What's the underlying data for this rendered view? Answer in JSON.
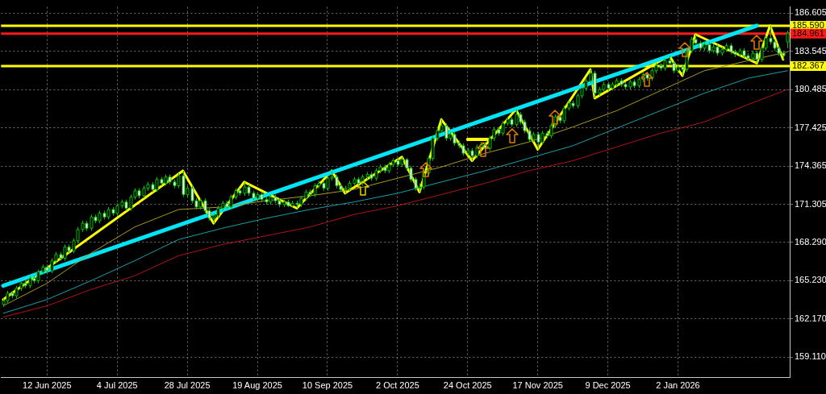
{
  "chart_data": {
    "type": "candlestick",
    "grid": true,
    "colors": [
      "#000000",
      "#000000",
      "#ffffff",
      "#000000",
      "#000000",
      "#ffffff",
      "#000000",
      "#ffffff",
      "#000000",
      "#000000",
      "#ffffff",
      "#000000",
      "#000000",
      "#ffffff",
      "#000000",
      "#ffffff",
      "#000000",
      "#000000",
      "#000000",
      "#ffffff",
      "#000000",
      "#ffffff",
      "#000000",
      "#ffffff",
      "#000000",
      "#ffffff",
      "#000000",
      "#000000",
      "#ffffff",
      "#000000",
      "#000000",
      "#ffffff",
      "#000000",
      "#000000",
      "#ffffff",
      "#000000",
      "#ffffff",
      "#000000",
      "#ffffff",
      "#ffffff",
      "#000000",
      "#ffffff",
      "#000000",
      "#ffffff",
      "#ffffff",
      "#000000",
      "#ffffff",
      "#ffffff",
      "#000000",
      "#000000",
      "#000000",
      "#ffffff",
      "#000000",
      "#000000",
      "#ffffff",
      "#000000",
      "#ffffff",
      "#ffffff",
      "#000000",
      "#ffffff",
      "#ffffff",
      "#000000",
      "#ffffff",
      "#ffffff",
      "#000000",
      "#ffffff",
      "#000000",
      "#ffffff",
      "#000000",
      "#000000",
      "#ffffff",
      "#000000",
      "#000000",
      "#ffffff",
      "#000000",
      "#000000",
      "#ffffff",
      "#ffffff",
      "#000000",
      "#000000",
      "#000000",
      "#ffffff",
      "#000000",
      "#000000",
      "#ffffff",
      "#000000",
      "#000000",
      "#ffffff",
      "#000000",
      "#000000",
      "#ffffff",
      "#000000",
      "#ffffff",
      "#ffffff",
      "#ffffff",
      "#000000",
      "#000000",
      "#000000",
      "#000000",
      "#000000",
      "#000000",
      "#ffffff",
      "#000000",
      "#ffffff",
      "#ffffff",
      "#ffffff",
      "#000000",
      "#ffffff",
      "#000000",
      "#000000",
      "#ffffff",
      "#000000",
      "#000000",
      "#ffffff",
      "#000000",
      "#000000",
      "#ffffff",
      "#000000",
      "#ffffff",
      "#ffffff",
      "#ffffff",
      "#000000",
      "#ffffff",
      "#000000",
      "#ffffff",
      "#000000",
      "#000000",
      "#ffffff",
      "#000000",
      "#000000",
      "#ffffff",
      "#000000",
      "#000000",
      "#000000",
      "#000000",
      "#ffffff",
      "#000000",
      "#000000",
      "#ffffff",
      "#000000",
      "#000000",
      "#ffffff",
      "#ffffff",
      "#000000",
      "#ffffff",
      "#000000",
      "#000000",
      "#ffffff",
      "#000000",
      "#000000",
      "#ffffff",
      "#000000",
      "#ffffff",
      "#ffffff",
      "#000000",
      "#ffffff",
      "#000000",
      "#000000",
      "#ffffff",
      "#ffffff",
      "#000000",
      "#ffffff",
      "#000000",
      "#ffffff",
      "#000000",
      "#000000",
      "#ffffff",
      "#ffffff",
      "#000000",
      "#ffffff",
      "#ffffff",
      "#000000",
      "#ffffff",
      "#000000",
      "#000000",
      "#ffffff",
      "#ffffff",
      "#ffffff",
      "#ffffff",
      "#000000"
    ],
    "categories": [
      null,
      null,
      null,
      null,
      null,
      null,
      null,
      null,
      null,
      null,
      "12 Jun 2025",
      null,
      null,
      null,
      null,
      null,
      null,
      null,
      null,
      null,
      null,
      null,
      null,
      null,
      null,
      null,
      "4 Jul 2025",
      null,
      null,
      null,
      null,
      null,
      null,
      null,
      null,
      null,
      null,
      null,
      null,
      null,
      null,
      null,
      "28 Jul 2025",
      null,
      null,
      null,
      null,
      null,
      null,
      null,
      null,
      null,
      null,
      null,
      null,
      null,
      null,
      null,
      "19 Aug 2025",
      null,
      null,
      null,
      null,
      null,
      null,
      null,
      null,
      null,
      null,
      null,
      null,
      null,
      null,
      null,
      "10 Sep 2025",
      null,
      null,
      null,
      null,
      null,
      null,
      null,
      null,
      null,
      null,
      null,
      null,
      null,
      null,
      null,
      "2 Oct 2025",
      null,
      null,
      null,
      null,
      null,
      null,
      null,
      null,
      null,
      null,
      null,
      null,
      null,
      null,
      null,
      "24 Oct 2025",
      null,
      null,
      null,
      null,
      null,
      null,
      null,
      null,
      null,
      null,
      null,
      null,
      null,
      null,
      null,
      "17 Nov 2025",
      null,
      null,
      null,
      null,
      null,
      null,
      null,
      null,
      null,
      null,
      null,
      null,
      null,
      null,
      null,
      "9 Dec 2025",
      null,
      null,
      null,
      null,
      null,
      null,
      null,
      null,
      null,
      null,
      null,
      null,
      null,
      null,
      null,
      "2 Jan 2026",
      null,
      null,
      null,
      null,
      null,
      null,
      null,
      null,
      null,
      null,
      null,
      null,
      null,
      null,
      null,
      null,
      null,
      null,
      null,
      null,
      null,
      null,
      null,
      null,
      null
    ],
    "ohlc": [
      [
        163.3,
        163.8,
        163.1,
        163.6
      ],
      [
        163.6,
        164.4,
        163.4,
        164.2
      ],
      [
        164.2,
        164.4,
        163.8,
        164.0
      ],
      [
        164.0,
        164.8,
        163.8,
        164.6
      ],
      [
        164.6,
        165.2,
        164.4,
        165.0
      ],
      [
        165.0,
        165.2,
        164.6,
        164.8
      ],
      [
        164.8,
        165.6,
        164.6,
        165.4
      ],
      [
        165.4,
        165.6,
        165.0,
        165.2
      ],
      [
        165.2,
        166.1,
        165.0,
        165.9
      ],
      [
        165.9,
        166.5,
        165.7,
        166.3
      ],
      [
        166.3,
        166.5,
        165.8,
        166.0
      ],
      [
        166.0,
        167.0,
        165.8,
        166.8
      ],
      [
        166.8,
        167.5,
        166.6,
        167.3
      ],
      [
        167.3,
        167.5,
        166.8,
        167.0
      ],
      [
        167.0,
        168.1,
        166.8,
        167.9
      ],
      [
        167.9,
        168.1,
        167.4,
        167.6
      ],
      [
        167.6,
        168.6,
        167.4,
        168.4
      ],
      [
        168.4,
        169.5,
        168.2,
        169.3
      ],
      [
        169.3,
        170.0,
        169.1,
        169.8
      ],
      [
        169.8,
        170.0,
        169.2,
        169.4
      ],
      [
        169.4,
        170.5,
        169.2,
        170.3
      ],
      [
        170.3,
        170.5,
        169.8,
        170.0
      ],
      [
        170.0,
        170.8,
        169.8,
        170.6
      ],
      [
        170.6,
        170.8,
        170.1,
        170.3
      ],
      [
        170.3,
        171.1,
        170.1,
        170.9
      ],
      [
        170.9,
        171.1,
        170.4,
        170.6
      ],
      [
        170.6,
        171.4,
        170.4,
        171.2
      ],
      [
        171.2,
        171.7,
        171.0,
        171.5
      ],
      [
        171.5,
        171.7,
        170.8,
        171.0
      ],
      [
        171.0,
        172.1,
        170.8,
        171.9
      ],
      [
        171.9,
        172.6,
        171.7,
        172.4
      ],
      [
        172.4,
        172.6,
        171.8,
        172.0
      ],
      [
        172.0,
        172.8,
        171.8,
        172.6
      ],
      [
        172.6,
        173.1,
        172.4,
        172.9
      ],
      [
        172.9,
        173.1,
        172.3,
        172.5
      ],
      [
        172.5,
        173.5,
        172.3,
        173.3
      ],
      [
        173.3,
        173.5,
        172.8,
        173.0
      ],
      [
        173.0,
        173.7,
        172.8,
        173.5
      ],
      [
        173.5,
        173.7,
        172.9,
        173.1
      ],
      [
        173.1,
        173.3,
        172.6,
        172.8
      ],
      [
        172.8,
        173.8,
        172.6,
        173.6
      ],
      [
        173.6,
        174.0,
        171.9,
        172.1
      ],
      [
        172.1,
        172.8,
        171.9,
        172.6
      ],
      [
        172.6,
        172.8,
        171.4,
        171.6
      ],
      [
        171.6,
        171.8,
        170.9,
        171.1
      ],
      [
        171.1,
        171.8,
        170.9,
        171.6
      ],
      [
        171.6,
        171.8,
        170.6,
        170.8
      ],
      [
        170.8,
        171.0,
        170.0,
        170.2
      ],
      [
        170.2,
        170.6,
        169.8,
        170.4
      ],
      [
        170.4,
        171.2,
        170.2,
        171.0
      ],
      [
        171.0,
        171.6,
        170.8,
        171.4
      ],
      [
        171.4,
        171.6,
        170.9,
        171.1
      ],
      [
        171.1,
        172.1,
        170.9,
        171.9
      ],
      [
        171.9,
        172.6,
        171.7,
        172.4
      ],
      [
        172.4,
        172.6,
        172.0,
        172.2
      ],
      [
        172.2,
        173.1,
        172.0,
        172.7
      ],
      [
        172.7,
        172.9,
        172.0,
        172.2
      ],
      [
        172.2,
        172.4,
        171.6,
        171.8
      ],
      [
        171.8,
        172.3,
        171.6,
        172.1
      ],
      [
        172.1,
        172.3,
        171.5,
        171.7
      ],
      [
        171.7,
        171.9,
        171.3,
        171.5
      ],
      [
        171.5,
        172.1,
        171.3,
        171.9
      ],
      [
        171.9,
        172.1,
        171.4,
        171.6
      ],
      [
        171.6,
        171.8,
        171.1,
        171.3
      ],
      [
        171.3,
        171.7,
        171.1,
        171.5
      ],
      [
        171.5,
        171.7,
        171.1,
        171.2
      ],
      [
        171.2,
        171.6,
        171.1,
        171.4
      ],
      [
        171.4,
        171.6,
        171.0,
        171.3
      ],
      [
        171.3,
        172.0,
        171.1,
        171.8
      ],
      [
        171.8,
        172.5,
        171.6,
        172.3
      ],
      [
        172.3,
        172.5,
        171.9,
        172.1
      ],
      [
        172.1,
        173.0,
        171.9,
        172.8
      ],
      [
        172.8,
        173.2,
        172.6,
        173.0
      ],
      [
        173.0,
        173.2,
        172.4,
        172.6
      ],
      [
        172.6,
        173.6,
        172.4,
        173.4
      ],
      [
        173.4,
        174.0,
        173.2,
        173.5
      ],
      [
        173.5,
        173.7,
        172.6,
        172.8
      ],
      [
        172.8,
        173.0,
        172.3,
        172.5
      ],
      [
        172.5,
        172.8,
        172.2,
        172.6
      ],
      [
        172.6,
        173.2,
        172.4,
        173.0
      ],
      [
        173.0,
        173.5,
        172.8,
        173.3
      ],
      [
        173.3,
        173.5,
        172.8,
        173.0
      ],
      [
        173.0,
        173.7,
        172.8,
        173.5
      ],
      [
        173.5,
        173.9,
        173.3,
        173.7
      ],
      [
        173.7,
        173.9,
        173.2,
        173.4
      ],
      [
        173.4,
        174.2,
        173.2,
        174.0
      ],
      [
        174.0,
        174.5,
        173.8,
        174.3
      ],
      [
        174.3,
        174.5,
        173.8,
        174.0
      ],
      [
        174.0,
        174.7,
        173.8,
        174.5
      ],
      [
        174.5,
        175.0,
        174.3,
        174.8
      ],
      [
        174.8,
        175.0,
        174.3,
        174.5
      ],
      [
        174.5,
        175.1,
        174.3,
        174.9
      ],
      [
        174.9,
        175.0,
        174.0,
        174.2
      ],
      [
        174.2,
        174.4,
        173.1,
        173.3
      ],
      [
        173.3,
        173.5,
        172.4,
        172.6
      ],
      [
        172.6,
        173.0,
        172.3,
        172.7
      ],
      [
        172.7,
        174.0,
        172.5,
        173.8
      ],
      [
        173.8,
        175.2,
        173.6,
        175.0
      ],
      [
        175.0,
        176.8,
        174.8,
        176.6
      ],
      [
        176.6,
        177.5,
        176.4,
        177.2
      ],
      [
        177.2,
        178.1,
        177.0,
        177.6
      ],
      [
        177.6,
        177.8,
        176.4,
        176.6
      ],
      [
        176.6,
        177.1,
        176.4,
        176.9
      ],
      [
        176.9,
        177.1,
        176.0,
        176.2
      ],
      [
        176.2,
        176.4,
        175.8,
        176.0
      ],
      [
        176.0,
        176.2,
        175.2,
        175.4
      ],
      [
        175.4,
        175.8,
        175.2,
        175.6
      ],
      [
        175.6,
        175.8,
        174.8,
        175.2
      ],
      [
        175.2,
        176.1,
        175.0,
        175.9
      ],
      [
        175.9,
        176.3,
        175.7,
        176.1
      ],
      [
        176.1,
        176.3,
        175.6,
        175.8
      ],
      [
        175.8,
        176.8,
        175.6,
        176.6
      ],
      [
        176.6,
        177.5,
        176.4,
        177.3
      ],
      [
        177.3,
        177.5,
        176.8,
        177.0
      ],
      [
        177.0,
        178.0,
        176.8,
        177.8
      ],
      [
        177.8,
        178.3,
        177.6,
        178.1
      ],
      [
        178.1,
        178.3,
        177.5,
        177.7
      ],
      [
        177.7,
        178.9,
        177.5,
        178.5
      ],
      [
        178.5,
        178.7,
        177.7,
        177.9
      ],
      [
        177.9,
        178.1,
        177.0,
        177.2
      ],
      [
        177.2,
        177.4,
        176.3,
        176.5
      ],
      [
        176.5,
        177.1,
        176.3,
        176.9
      ],
      [
        176.9,
        177.1,
        175.7,
        176.3
      ],
      [
        176.3,
        177.2,
        176.1,
        177.0
      ],
      [
        177.0,
        177.2,
        176.6,
        176.8
      ],
      [
        176.8,
        177.8,
        176.6,
        177.6
      ],
      [
        177.6,
        178.5,
        177.4,
        178.3
      ],
      [
        178.3,
        178.5,
        177.8,
        178.0
      ],
      [
        178.0,
        179.2,
        177.8,
        179.0
      ],
      [
        179.0,
        179.6,
        178.8,
        179.4
      ],
      [
        179.4,
        179.6,
        179.0,
        179.2
      ],
      [
        179.2,
        180.2,
        179.0,
        180.0
      ],
      [
        180.0,
        180.8,
        179.8,
        180.6
      ],
      [
        180.6,
        181.4,
        180.4,
        181.2
      ],
      [
        181.2,
        182.1,
        181.0,
        181.8
      ],
      [
        181.8,
        182.0,
        179.8,
        180.2
      ],
      [
        180.2,
        180.7,
        180.0,
        180.5
      ],
      [
        180.5,
        181.1,
        180.3,
        180.9
      ],
      [
        180.9,
        181.1,
        180.4,
        180.6
      ],
      [
        180.6,
        181.1,
        180.4,
        180.9
      ],
      [
        180.9,
        181.4,
        180.7,
        181.2
      ],
      [
        181.2,
        181.4,
        180.7,
        180.9
      ],
      [
        180.9,
        181.1,
        180.5,
        180.7
      ],
      [
        180.7,
        181.3,
        180.5,
        181.1
      ],
      [
        181.1,
        181.3,
        180.6,
        180.8
      ],
      [
        180.8,
        181.5,
        180.6,
        181.3
      ],
      [
        181.3,
        181.9,
        181.1,
        181.7
      ],
      [
        181.7,
        181.9,
        181.2,
        181.4
      ],
      [
        181.4,
        182.2,
        181.2,
        182.0
      ],
      [
        182.0,
        182.6,
        181.8,
        182.4
      ],
      [
        182.4,
        182.6,
        182.0,
        182.2
      ],
      [
        182.2,
        183.0,
        182.0,
        182.8
      ],
      [
        182.8,
        183.2,
        182.4,
        182.6
      ],
      [
        182.6,
        182.8,
        181.8,
        182.0
      ],
      [
        182.0,
        182.5,
        181.8,
        182.3
      ],
      [
        182.3,
        182.5,
        181.6,
        182.1
      ],
      [
        182.1,
        183.8,
        181.9,
        183.6
      ],
      [
        183.6,
        184.7,
        183.4,
        184.5
      ],
      [
        184.5,
        184.9,
        184.0,
        184.2
      ],
      [
        184.2,
        184.4,
        183.6,
        183.8
      ],
      [
        183.8,
        184.3,
        183.6,
        184.1
      ],
      [
        184.1,
        184.3,
        183.4,
        183.6
      ],
      [
        183.6,
        184.1,
        183.4,
        183.9
      ],
      [
        183.9,
        184.1,
        183.2,
        183.4
      ],
      [
        183.4,
        183.9,
        183.2,
        183.7
      ],
      [
        183.7,
        184.2,
        183.5,
        184.0
      ],
      [
        184.0,
        184.2,
        183.3,
        183.5
      ],
      [
        183.5,
        183.7,
        183.1,
        183.3
      ],
      [
        183.3,
        183.8,
        183.1,
        183.6
      ],
      [
        183.6,
        183.8,
        183.0,
        183.2
      ],
      [
        183.2,
        183.4,
        182.8,
        183.0
      ],
      [
        183.0,
        183.6,
        182.8,
        183.4
      ],
      [
        183.4,
        183.6,
        182.6,
        182.9
      ],
      [
        182.9,
        184.0,
        182.7,
        183.8
      ],
      [
        183.8,
        184.8,
        183.6,
        184.6
      ],
      [
        184.6,
        185.6,
        184.1,
        184.3
      ],
      [
        184.3,
        184.5,
        183.6,
        183.8
      ],
      [
        183.8,
        184.0,
        183.2,
        183.4
      ],
      [
        183.4,
        183.6,
        182.9,
        183.2
      ],
      [
        184.3,
        185.2,
        183.8,
        185.0
      ]
    ],
    "series": [
      {
        "type": "line",
        "color": "#a89a1c",
        "values": [
          163.2,
          null,
          null,
          null,
          null,
          null,
          null,
          null,
          null,
          null,
          165.0,
          null,
          null,
          null,
          null,
          null,
          null,
          null,
          null,
          null,
          167.4,
          null,
          null,
          null,
          null,
          null,
          null,
          null,
          null,
          null,
          169.5,
          null,
          null,
          null,
          null,
          null,
          null,
          null,
          null,
          null,
          170.9,
          null,
          null,
          null,
          null,
          null,
          null,
          null,
          null,
          null,
          171.1,
          null,
          null,
          null,
          null,
          null,
          null,
          null,
          null,
          null,
          171.6,
          null,
          null,
          null,
          null,
          null,
          null,
          null,
          null,
          null,
          172.0,
          null,
          null,
          null,
          null,
          null,
          null,
          null,
          null,
          null,
          172.5,
          null,
          null,
          null,
          null,
          null,
          null,
          null,
          null,
          null,
          173.4,
          null,
          null,
          null,
          null,
          null,
          null,
          null,
          null,
          null,
          174.3,
          null,
          null,
          null,
          null,
          null,
          null,
          null,
          null,
          null,
          175.4,
          null,
          null,
          null,
          null,
          null,
          null,
          null,
          null,
          null,
          176.3,
          null,
          null,
          null,
          null,
          null,
          null,
          null,
          null,
          null,
          177.5,
          null,
          null,
          null,
          null,
          null,
          null,
          null,
          null,
          null,
          178.8,
          null,
          null,
          null,
          null,
          null,
          null,
          null,
          null,
          null,
          180.4,
          null,
          null,
          null,
          null,
          null,
          null,
          null,
          null,
          null,
          182.0,
          null,
          null,
          null,
          null,
          null,
          null,
          null,
          null,
          null,
          182.8,
          null,
          null,
          null,
          null,
          null,
          null,
          null,
          null,
          183.5
        ]
      },
      {
        "type": "line",
        "color": "#1a9ea8",
        "values": [
          162.6,
          null,
          null,
          null,
          null,
          null,
          null,
          null,
          null,
          null,
          163.7,
          null,
          null,
          null,
          null,
          null,
          null,
          null,
          null,
          null,
          165.2,
          null,
          null,
          null,
          null,
          null,
          null,
          null,
          null,
          null,
          166.8,
          null,
          null,
          null,
          null,
          null,
          null,
          null,
          null,
          null,
          168.5,
          null,
          null,
          null,
          null,
          null,
          null,
          null,
          null,
          null,
          169.4,
          null,
          null,
          null,
          null,
          null,
          null,
          null,
          null,
          null,
          170.2,
          null,
          null,
          null,
          null,
          null,
          null,
          null,
          null,
          null,
          170.9,
          null,
          null,
          null,
          null,
          null,
          null,
          null,
          null,
          null,
          171.5,
          null,
          null,
          null,
          null,
          null,
          null,
          null,
          null,
          null,
          172.2,
          null,
          null,
          null,
          null,
          null,
          null,
          null,
          null,
          null,
          173.1,
          null,
          null,
          null,
          null,
          null,
          null,
          null,
          null,
          null,
          174.0,
          null,
          null,
          null,
          null,
          null,
          null,
          null,
          null,
          null,
          175.0,
          null,
          null,
          null,
          null,
          null,
          null,
          null,
          null,
          null,
          176.0,
          null,
          null,
          null,
          null,
          null,
          null,
          null,
          null,
          null,
          177.4,
          null,
          null,
          null,
          null,
          null,
          null,
          null,
          null,
          null,
          178.8,
          null,
          null,
          null,
          null,
          null,
          null,
          null,
          null,
          null,
          180.2,
          null,
          null,
          null,
          null,
          null,
          null,
          null,
          null,
          null,
          181.4,
          null,
          null,
          null,
          null,
          null,
          null,
          null,
          null,
          182.0
        ]
      },
      {
        "type": "line",
        "color": "#b01414",
        "values": [
          162.3,
          null,
          null,
          null,
          null,
          null,
          null,
          null,
          null,
          null,
          163.2,
          null,
          null,
          null,
          null,
          null,
          null,
          null,
          null,
          null,
          164.5,
          null,
          null,
          null,
          null,
          null,
          null,
          null,
          null,
          null,
          165.6,
          null,
          null,
          null,
          null,
          null,
          null,
          null,
          null,
          null,
          167.2,
          null,
          null,
          null,
          null,
          null,
          null,
          null,
          null,
          null,
          168.1,
          null,
          null,
          null,
          null,
          null,
          null,
          null,
          null,
          null,
          168.8,
          null,
          null,
          null,
          null,
          null,
          null,
          null,
          null,
          null,
          169.5,
          null,
          null,
          null,
          null,
          null,
          null,
          null,
          null,
          null,
          170.5,
          null,
          null,
          null,
          null,
          null,
          null,
          null,
          null,
          null,
          171.2,
          null,
          null,
          null,
          null,
          null,
          null,
          null,
          null,
          null,
          172.1,
          null,
          null,
          null,
          null,
          null,
          null,
          null,
          null,
          null,
          173.0,
          null,
          null,
          null,
          null,
          null,
          null,
          null,
          null,
          null,
          174.0,
          null,
          null,
          null,
          null,
          null,
          null,
          null,
          null,
          null,
          174.8,
          null,
          null,
          null,
          null,
          null,
          null,
          null,
          null,
          null,
          175.9,
          null,
          null,
          null,
          null,
          null,
          null,
          null,
          null,
          null,
          177.0,
          null,
          null,
          null,
          null,
          null,
          null,
          null,
          null,
          null,
          177.9,
          null,
          null,
          null,
          null,
          null,
          null,
          null,
          null,
          null,
          179.3,
          null,
          null,
          null,
          null,
          null,
          null,
          null,
          null,
          180.5
        ]
      },
      {
        "type": "line",
        "color": "#00e5f5",
        "values": [
          164.8,
          null,
          null,
          null,
          null,
          null,
          null,
          null,
          null,
          null,
          null,
          null,
          null,
          null,
          null,
          null,
          null,
          null,
          null,
          null,
          null,
          null,
          null,
          null,
          null,
          null,
          null,
          null,
          null,
          null,
          null,
          null,
          null,
          null,
          null,
          null,
          null,
          null,
          null,
          null,
          null,
          null,
          null,
          null,
          null,
          null,
          null,
          null,
          null,
          null,
          null,
          null,
          null,
          null,
          null,
          null,
          null,
          null,
          null,
          null,
          null,
          null,
          null,
          null,
          null,
          null,
          null,
          null,
          null,
          null,
          null,
          null,
          null,
          null,
          null,
          null,
          null,
          null,
          null,
          null,
          null,
          null,
          null,
          null,
          null,
          null,
          null,
          null,
          null,
          null,
          null,
          null,
          null,
          null,
          null,
          null,
          null,
          null,
          null,
          null,
          null,
          null,
          null,
          null,
          null,
          null,
          null,
          null,
          null,
          null,
          null,
          null,
          null,
          null,
          null,
          null,
          null,
          null,
          null,
          null,
          null,
          null,
          null,
          null,
          null,
          null,
          null,
          null,
          null,
          null,
          null,
          null,
          null,
          null,
          null,
          null,
          null,
          null,
          null,
          null,
          null,
          null,
          null,
          null,
          null,
          null,
          null,
          null,
          null,
          null,
          null,
          null,
          null,
          null,
          null,
          null,
          null,
          null,
          null,
          null,
          null,
          null,
          null,
          null,
          null,
          null,
          null,
          null,
          null,
          null,
          null,
          null,
          185.6,
          null,
          null,
          null,
          null,
          null,
          null,
          null
        ]
      },
      {
        "type": "line",
        "color": "#ffff00",
        "values": [
          163.7,
          null,
          null,
          null,
          null,
          null,
          null,
          null,
          null,
          null,
          null,
          null,
          null,
          null,
          null,
          null,
          null,
          null,
          null,
          null,
          null,
          null,
          null,
          null,
          null,
          null,
          null,
          null,
          null,
          null,
          null,
          null,
          null,
          null,
          null,
          null,
          null,
          null,
          null,
          null,
          null,
          174.0,
          null,
          null,
          null,
          null,
          null,
          null,
          169.8,
          null,
          null,
          null,
          null,
          null,
          null,
          173.1,
          null,
          null,
          null,
          null,
          null,
          null,
          null,
          null,
          null,
          null,
          null,
          171.0,
          null,
          null,
          null,
          null,
          null,
          null,
          null,
          174.0,
          null,
          null,
          172.2,
          null,
          null,
          null,
          null,
          null,
          null,
          null,
          null,
          null,
          null,
          null,
          null,
          175.1,
          null,
          null,
          null,
          172.3,
          null,
          null,
          null,
          null,
          178.1,
          null,
          null,
          null,
          null,
          null,
          null,
          174.8,
          null,
          null,
          null,
          null,
          null,
          null,
          null,
          null,
          null,
          178.9,
          null,
          null,
          null,
          null,
          175.7,
          null,
          null,
          null,
          null,
          null,
          null,
          null,
          null,
          null,
          null,
          null,
          182.1,
          179.8,
          null,
          null,
          null,
          null,
          null,
          null,
          null,
          null,
          null,
          null,
          null,
          null,
          null,
          null,
          null,
          null,
          183.2,
          null,
          null,
          181.6,
          null,
          null,
          184.9,
          null,
          null,
          null,
          null,
          null,
          null,
          null,
          null,
          null,
          null,
          null,
          null,
          null,
          182.6,
          null,
          null,
          185.6,
          null,
          null,
          182.9,
          null
        ]
      },
      {
        "type": "line",
        "color": "#ffff00",
        "values": [
          null,
          null,
          null,
          null,
          null,
          null,
          null,
          null,
          null,
          null,
          null,
          null,
          null,
          null,
          null,
          null,
          null,
          null,
          null,
          null,
          null,
          null,
          null,
          null,
          null,
          null,
          null,
          null,
          null,
          null,
          null,
          null,
          null,
          null,
          null,
          null,
          null,
          null,
          null,
          null,
          null,
          null,
          null,
          null,
          null,
          null,
          null,
          null,
          null,
          null,
          null,
          null,
          null,
          null,
          null,
          null,
          null,
          null,
          null,
          null,
          null,
          null,
          null,
          null,
          null,
          null,
          null,
          null,
          null,
          null,
          null,
          null,
          null,
          null,
          null,
          null,
          null,
          null,
          null,
          null,
          null,
          null,
          null,
          null,
          null,
          null,
          null,
          null,
          null,
          null,
          null,
          null,
          null,
          null,
          null,
          null,
          null,
          null,
          null,
          null,
          null,
          null,
          null,
          null,
          null,
          null,
          176.5,
          null,
          null,
          null,
          null,
          176.5,
          null,
          null,
          null,
          null,
          null,
          null,
          null,
          null,
          null,
          null,
          null,
          null,
          null,
          null,
          null,
          null,
          null,
          null,
          null,
          null,
          null,
          null,
          null,
          null,
          null,
          null,
          null,
          null,
          null,
          null,
          null,
          null,
          null,
          null,
          null,
          null,
          null,
          null,
          null,
          null,
          null,
          null,
          null,
          null,
          null,
          null,
          null,
          null,
          null,
          null,
          null,
          null,
          null,
          null,
          null,
          null,
          null,
          null,
          null,
          null,
          null,
          null,
          null,
          null,
          null,
          null,
          null,
          null
        ]
      }
    ],
    "ylim": [
      157.5,
      187.1
    ],
    "yticks": [
      {
        "value": 159.11,
        "label": "159.110"
      },
      {
        "value": 162.17,
        "label": "162.170"
      },
      {
        "value": 165.23,
        "label": "165.230"
      },
      {
        "value": 168.29,
        "label": "168.290"
      },
      {
        "value": 171.305,
        "label": "171.305"
      },
      {
        "value": 174.365,
        "label": "174.365"
      },
      {
        "value": 177.425,
        "label": "177.425"
      },
      {
        "value": 180.485,
        "label": "180.485"
      },
      {
        "value": 183.545,
        "label": "183.545"
      },
      {
        "value": 186.605,
        "label": "186.605"
      }
    ],
    "ref_lines": [
      {
        "axis": "y",
        "value": 185.59,
        "label": "185.590",
        "color": "#ffff00"
      },
      {
        "axis": "y",
        "value": 184.961,
        "label": "184.961",
        "color": "#ff1a1a"
      },
      {
        "axis": "y",
        "value": 182.367,
        "label": "182.367",
        "color": "#ffff00"
      }
    ]
  }
}
